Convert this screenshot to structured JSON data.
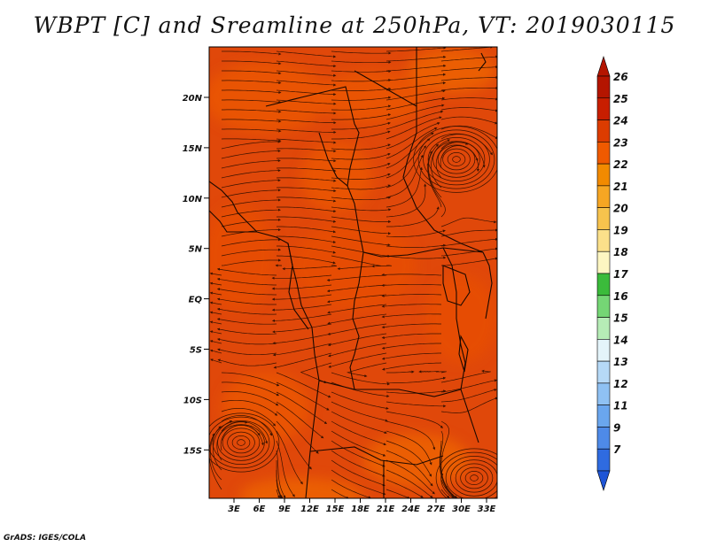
{
  "title": "WBPT [C] and Sreamline at 250hPa, VT: 2019030115",
  "credit": "GrADS: IGES/COLA",
  "map": {
    "lat_labels": [
      "20N",
      "15N",
      "10N",
      "5N",
      "EQ",
      "5S",
      "10S",
      "15S"
    ],
    "lon_labels": [
      "3E",
      "6E",
      "9E",
      "12E",
      "15E",
      "18E",
      "21E",
      "24E",
      "27E",
      "30E",
      "33E"
    ],
    "field_colors": [
      "#e0480a",
      "#ec5a00",
      "#f06a00",
      "#e84e04"
    ],
    "streamline_color": "#3a1200",
    "border_color": "#1a0800"
  },
  "colorbar": {
    "levels": [
      {
        "label": "26",
        "color": "#b41500"
      },
      {
        "label": "25",
        "color": "#c81e00"
      },
      {
        "label": "24",
        "color": "#dc3c00"
      },
      {
        "label": "23",
        "color": "#ef5a00"
      },
      {
        "label": "22",
        "color": "#f28a00"
      },
      {
        "label": "21",
        "color": "#f6a623"
      },
      {
        "label": "20",
        "color": "#f7c34d"
      },
      {
        "label": "19",
        "color": "#fbe08a"
      },
      {
        "label": "18",
        "color": "#fdf6c2"
      },
      {
        "label": "17",
        "color": "#3bbb3b"
      },
      {
        "label": "16",
        "color": "#75d675"
      },
      {
        "label": "15",
        "color": "#b6ecb6"
      },
      {
        "label": "14",
        "color": "#e4f4fa"
      },
      {
        "label": "13",
        "color": "#b6d9f7"
      },
      {
        "label": "12",
        "color": "#8fc1f3"
      },
      {
        "label": "11",
        "color": "#6aa6ee"
      },
      {
        "label": "9",
        "color": "#4e8ae8"
      },
      {
        "label": "7",
        "color": "#2f6be0"
      }
    ],
    "under_color": "#1e55d6"
  }
}
